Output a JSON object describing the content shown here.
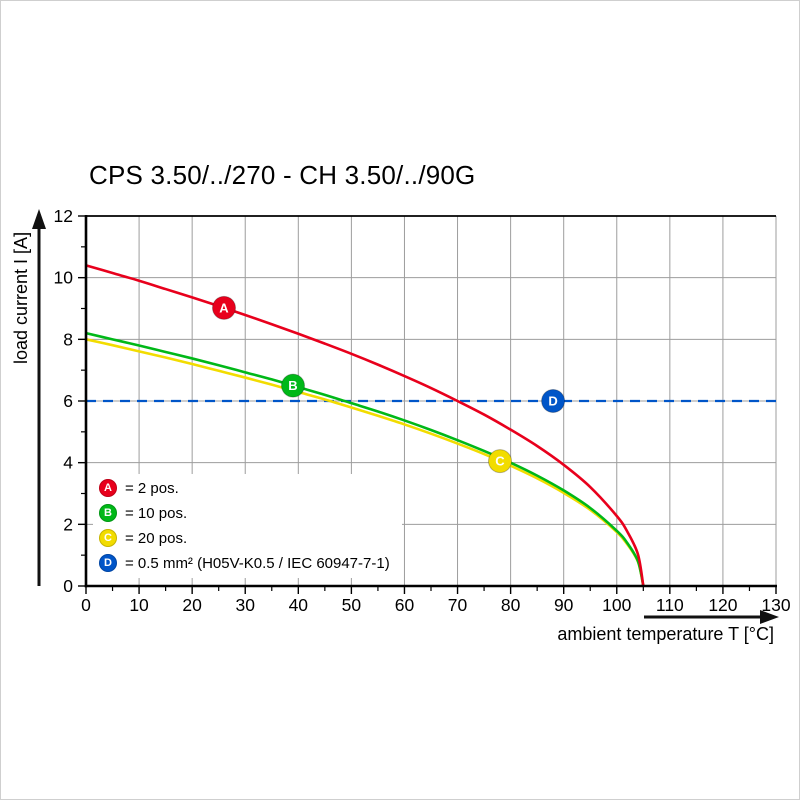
{
  "title": "CPS 3.50/../270 - CH 3.50/../90G",
  "chart_data": {
    "type": "line",
    "title": "CPS 3.50/../270 - CH 3.50/../90G",
    "xlabel": "ambient temperature T [°C]",
    "ylabel": "load current I [A]",
    "xlim": [
      0,
      130
    ],
    "ylim": [
      0,
      12
    ],
    "x_ticks": [
      0,
      10,
      20,
      30,
      40,
      50,
      60,
      70,
      80,
      90,
      100,
      110,
      120,
      130
    ],
    "y_ticks": [
      0,
      2,
      4,
      6,
      8,
      10,
      12
    ],
    "x_minor_step": 5,
    "y_minor_step": 1,
    "grid": true,
    "grid_color": "#9d9d9d",
    "axis_color": "#000000",
    "series": [
      {
        "name": "A",
        "label": "2 pos.",
        "color": "#e8001c",
        "style": "solid",
        "marker_at": [
          26,
          9.02
        ],
        "points": [
          [
            0,
            10.4
          ],
          [
            5,
            10.15
          ],
          [
            10,
            9.9
          ],
          [
            15,
            9.63
          ],
          [
            20,
            9.36
          ],
          [
            25,
            9.08
          ],
          [
            30,
            8.79
          ],
          [
            35,
            8.49
          ],
          [
            40,
            8.18
          ],
          [
            45,
            7.86
          ],
          [
            50,
            7.53
          ],
          [
            55,
            7.18
          ],
          [
            60,
            6.81
          ],
          [
            65,
            6.42
          ],
          [
            70,
            6.0
          ],
          [
            75,
            5.56
          ],
          [
            80,
            5.07
          ],
          [
            85,
            4.54
          ],
          [
            90,
            3.93
          ],
          [
            95,
            3.21
          ],
          [
            100,
            2.27
          ],
          [
            102,
            1.76
          ],
          [
            104,
            1.02
          ],
          [
            105,
            0
          ]
        ]
      },
      {
        "name": "B",
        "label": "10 pos.",
        "color": "#00b818",
        "style": "solid",
        "marker_at": [
          39,
          6.5
        ],
        "points": [
          [
            0,
            8.2
          ],
          [
            5,
            8.0
          ],
          [
            10,
            7.8
          ],
          [
            15,
            7.59
          ],
          [
            20,
            7.38
          ],
          [
            25,
            7.16
          ],
          [
            30,
            6.93
          ],
          [
            35,
            6.7
          ],
          [
            40,
            6.45
          ],
          [
            45,
            6.2
          ],
          [
            50,
            5.93
          ],
          [
            55,
            5.66
          ],
          [
            60,
            5.37
          ],
          [
            65,
            5.06
          ],
          [
            70,
            4.73
          ],
          [
            75,
            4.38
          ],
          [
            80,
            4.0
          ],
          [
            85,
            3.58
          ],
          [
            90,
            3.1
          ],
          [
            95,
            2.53
          ],
          [
            100,
            1.79
          ],
          [
            102,
            1.39
          ],
          [
            104,
            0.8
          ],
          [
            105,
            0
          ]
        ]
      },
      {
        "name": "C",
        "label": "20 pos.",
        "color": "#f2dc00",
        "style": "solid",
        "marker_at": [
          78,
          4.05
        ],
        "points": [
          [
            0,
            8.0
          ],
          [
            5,
            7.81
          ],
          [
            10,
            7.61
          ],
          [
            15,
            7.41
          ],
          [
            20,
            7.2
          ],
          [
            25,
            6.98
          ],
          [
            30,
            6.76
          ],
          [
            35,
            6.53
          ],
          [
            40,
            6.29
          ],
          [
            45,
            6.05
          ],
          [
            50,
            5.79
          ],
          [
            55,
            5.52
          ],
          [
            60,
            5.24
          ],
          [
            65,
            4.94
          ],
          [
            70,
            4.62
          ],
          [
            75,
            4.28
          ],
          [
            80,
            3.9
          ],
          [
            85,
            3.49
          ],
          [
            90,
            3.02
          ],
          [
            95,
            2.47
          ],
          [
            100,
            1.75
          ],
          [
            102,
            1.35
          ],
          [
            104,
            0.78
          ],
          [
            105,
            0
          ]
        ]
      },
      {
        "name": "D",
        "label": "0.5 mm² (H05V-K0.5 / IEC 60947-7-1)",
        "color": "#0055c8",
        "style": "dashed",
        "marker_at": [
          88,
          6
        ],
        "points": [
          [
            0,
            6
          ],
          [
            130,
            6
          ]
        ]
      }
    ],
    "legend": [
      {
        "key": "A",
        "text": "= 2 pos.",
        "color": "#e8001c"
      },
      {
        "key": "B",
        "text": "= 10 pos.",
        "color": "#00b818"
      },
      {
        "key": "C",
        "text": "= 20 pos.",
        "color": "#f2dc00"
      },
      {
        "key": "D",
        "text": "= 0.5 mm² (H05V-K0.5 / IEC 60947-7-1)",
        "color": "#0055c8"
      }
    ]
  }
}
